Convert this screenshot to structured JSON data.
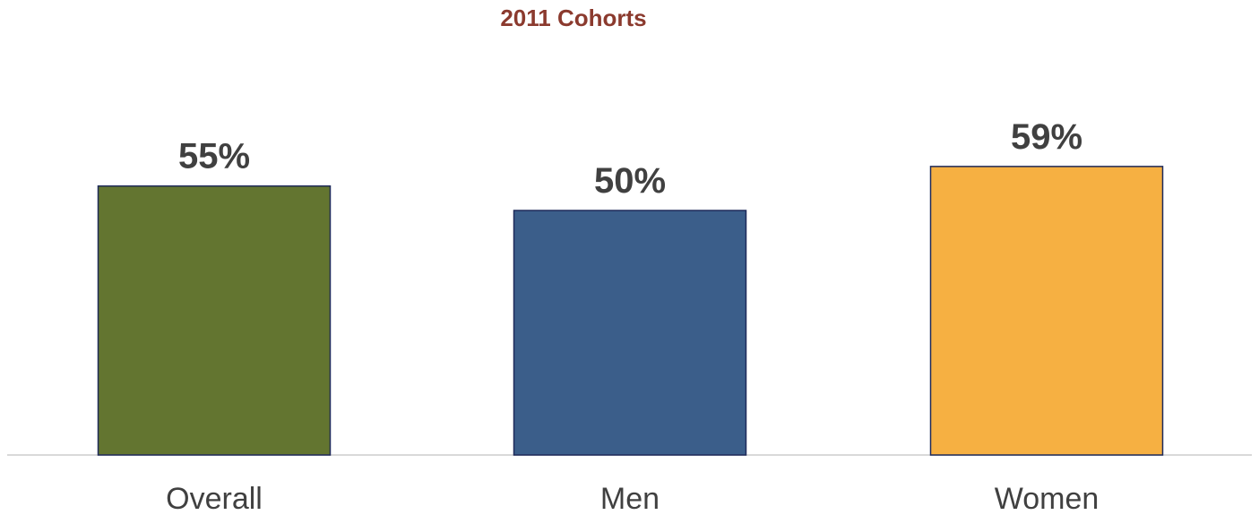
{
  "chart_data": {
    "type": "bar",
    "title": "2011 Cohorts",
    "categories": [
      "Overall",
      "Men",
      "Women"
    ],
    "values": [
      55,
      50,
      59
    ],
    "data_labels": [
      "55%",
      "50%",
      "59%"
    ],
    "colors": [
      "#637530",
      "#3B5E8A",
      "#F6B042"
    ],
    "bar_outline_color": "#1F2A5A",
    "title_color": "#8B3A2E",
    "label_color": "#404040",
    "axis_color": "#D9D9D9",
    "xlabel": "",
    "ylabel": "",
    "grid": false,
    "legend": "none"
  }
}
